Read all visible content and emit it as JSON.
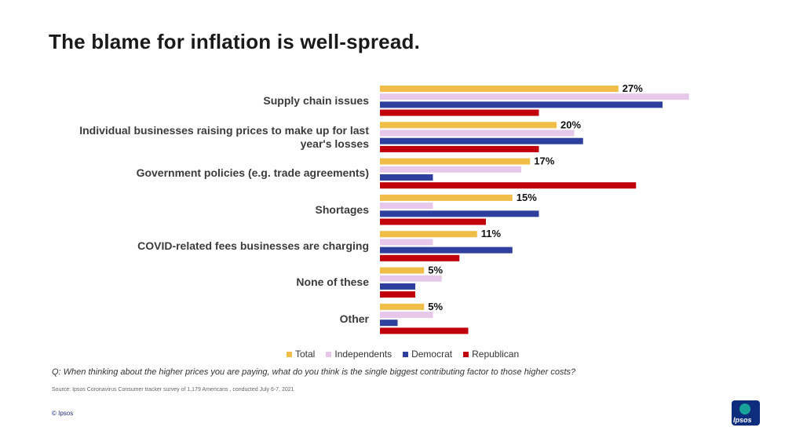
{
  "title": "The blame for inflation is well-spread.",
  "colors": {
    "Total": "#F0BE48",
    "Independents": "#E7C8EA",
    "Democrat": "#2E3F9D",
    "Republican": "#C0000B"
  },
  "chart_data": {
    "type": "bar",
    "orientation": "horizontal",
    "categories": [
      "Supply chain issues",
      "Individual businesses raising prices to make up for last year's losses",
      "Government policies (e.g. trade agreements)",
      "Shortages",
      "COVID-related fees businesses are charging",
      "None of these",
      "Other"
    ],
    "category_lines": [
      [
        "Supply chain issues"
      ],
      [
        "Individual businesses raising prices to make up for last",
        "year's losses"
      ],
      [
        "Government policies (e.g. trade agreements)"
      ],
      [
        "Shortages"
      ],
      [
        "COVID-related fees businesses are charging"
      ],
      [
        "None of these"
      ],
      [
        "Other"
      ]
    ],
    "series": [
      {
        "name": "Total",
        "values": [
          27,
          20,
          17,
          15,
          11,
          5,
          5
        ]
      },
      {
        "name": "Independents",
        "values": [
          35,
          22,
          16,
          6,
          6,
          7,
          6
        ]
      },
      {
        "name": "Democrat",
        "values": [
          32,
          23,
          6,
          18,
          15,
          4,
          2
        ]
      },
      {
        "name": "Republican",
        "values": [
          18,
          18,
          29,
          12,
          9,
          4,
          10
        ]
      }
    ],
    "data_labels": [
      "27%",
      "20%",
      "17%",
      "15%",
      "11%",
      "5%",
      "5%"
    ],
    "xlim": [
      0,
      36
    ],
    "legend_position": "bottom",
    "grid": false
  },
  "question": "Q: When thinking about the higher prices you are paying, what do you think is the single biggest contributing factor to those higher costs?",
  "source": "Source: Ipsos Coronavirus Consumer tracker survey of 1,179 Americans , conducted July 6-7, 2021",
  "copyright": "© Ipsos",
  "logo_text": "Ipsos"
}
